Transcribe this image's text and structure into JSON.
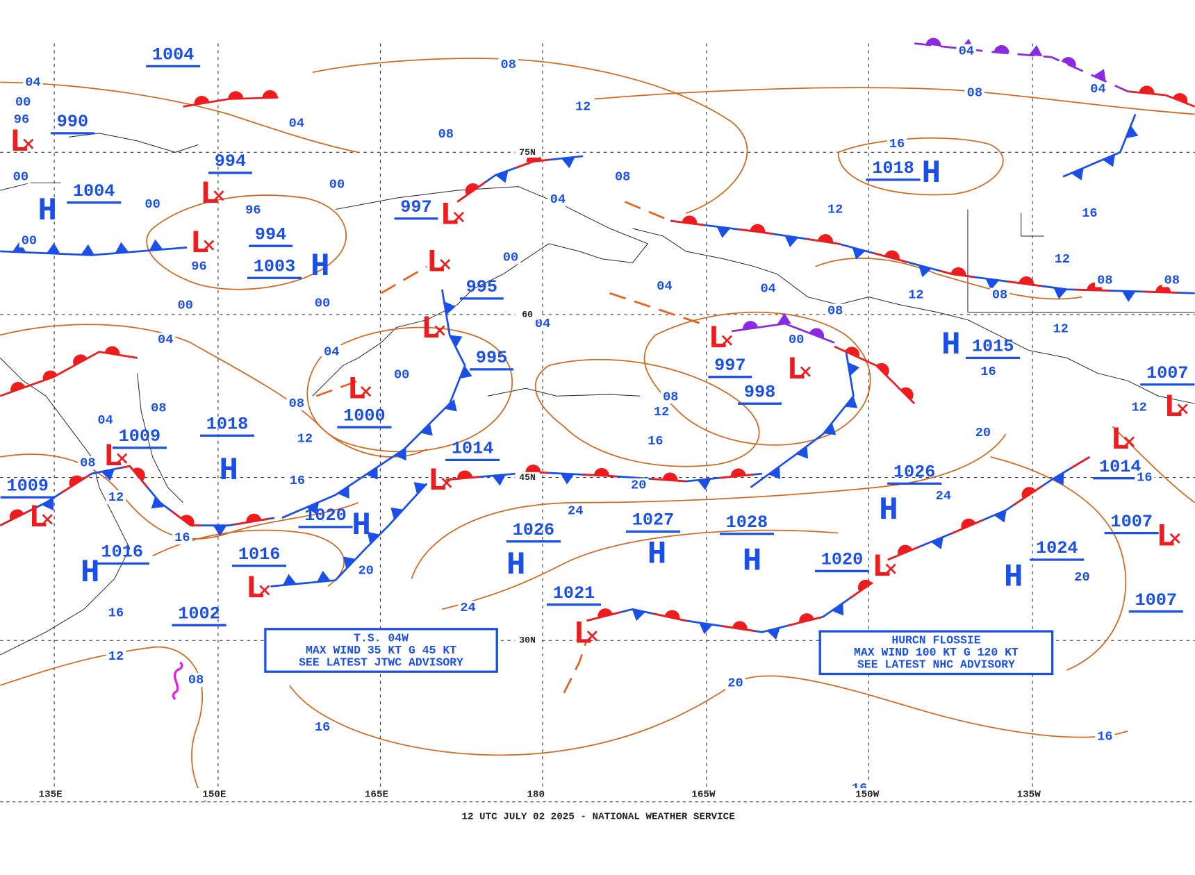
{
  "map": {
    "footer": "12 UTC JULY 02 2025 - NATIONAL WEATHER SERVICE",
    "longitude_labels": [
      "135E",
      "150E",
      "165E",
      "180",
      "165W",
      "150W",
      "135W"
    ],
    "latitude_labels": [
      "75N",
      "60",
      "45N",
      "30N"
    ],
    "pressure_centers": [
      {
        "pressure": "1004"
      },
      {
        "symbol": "L",
        "pressure": "990"
      },
      {
        "symbol": "L",
        "pressure": "994"
      },
      {
        "symbol": "H",
        "pressure": "1004"
      },
      {
        "symbol": "L",
        "pressure": "994"
      },
      {
        "symbol": "H",
        "pressure": "1003"
      },
      {
        "symbol": "L",
        "pressure": "997"
      },
      {
        "symbol": "L"
      },
      {
        "symbol": "L",
        "pressure": "995"
      },
      {
        "pressure": "995"
      },
      {
        "symbol": "L",
        "pressure": "1000"
      },
      {
        "symbol": "H",
        "pressure": "1018"
      },
      {
        "symbol": "L",
        "pressure": "1009"
      },
      {
        "symbol": "L",
        "pressure": "1009"
      },
      {
        "symbol": "L",
        "pressure": "1014"
      },
      {
        "symbol": "H",
        "pressure": "1020"
      },
      {
        "symbol": "H",
        "pressure": "1016"
      },
      {
        "pressure": "1016"
      },
      {
        "symbol": "L",
        "pressure": "1002"
      },
      {
        "symbol": "H",
        "pressure": "1026"
      },
      {
        "symbol": "H",
        "pressure": "1027"
      },
      {
        "symbol": "H",
        "pressure": "1028"
      },
      {
        "symbol": "L",
        "pressure": "997"
      },
      {
        "symbol": "L",
        "pressure": "998"
      },
      {
        "symbol": "H",
        "pressure": "1018"
      },
      {
        "symbol": "H",
        "pressure": "1015"
      },
      {
        "symbol": "H",
        "pressure": "1026"
      },
      {
        "symbol": "L",
        "pressure": "1020"
      },
      {
        "symbol": "H",
        "pressure": "1024"
      },
      {
        "symbol": "L",
        "pressure": "1021"
      },
      {
        "symbol": "L",
        "pressure": "1014"
      },
      {
        "symbol": "L",
        "pressure": "1007"
      },
      {
        "symbol": "L",
        "pressure": "1007"
      },
      {
        "pressure": "1007"
      }
    ],
    "isobar_labels": [
      "04",
      "00",
      "96",
      "00",
      "00",
      "08",
      "04",
      "08",
      "12",
      "08",
      "04",
      "04",
      "16",
      "08",
      "04",
      "00",
      "00",
      "96",
      "96",
      "00",
      "00",
      "00",
      "04",
      "04",
      "00",
      "04",
      "04",
      "04",
      "08",
      "00",
      "08",
      "12",
      "16",
      "20",
      "24",
      "20",
      "24",
      "16",
      "16",
      "12",
      "08",
      "08",
      "04",
      "08",
      "12",
      "16",
      "12",
      "16",
      "20",
      "16",
      "16",
      "20",
      "24",
      "20",
      "16",
      "12",
      "12",
      "16",
      "12",
      "08",
      "08",
      "16",
      "12",
      "12",
      "08",
      "08"
    ],
    "advisories": [
      {
        "lines": [
          "T.S. 04W",
          "MAX WIND 35 KT G 45 KT",
          "SEE LATEST JTWC ADVISORY"
        ]
      },
      {
        "lines": [
          "HURCN FLOSSIE",
          "MAX WIND 100 KT G 120 KT",
          "SEE LATEST NHC ADVISORY"
        ]
      }
    ]
  }
}
